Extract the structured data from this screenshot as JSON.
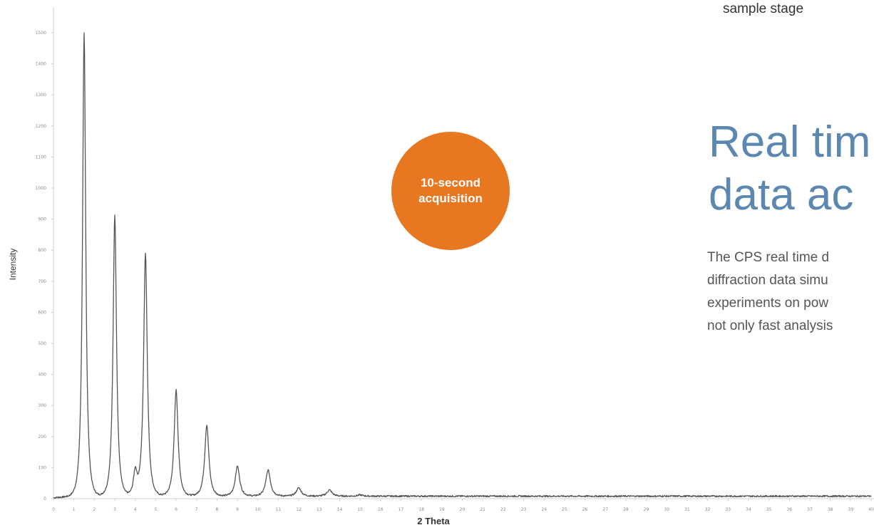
{
  "badge": {
    "line1": "10-second",
    "line2": "acquisition",
    "color": "#e87722"
  },
  "top_fragment": "sample stage",
  "heading": {
    "line1": "Real tim",
    "line2": "data ac",
    "color": "#5b87b0"
  },
  "body_lines": [
    "The CPS real time d",
    "diffraction data simu",
    "experiments on pow",
    "not only fast analysis"
  ],
  "chart_data": {
    "type": "line",
    "title": "",
    "xlabel": "2 Theta",
    "ylabel": "Intensity",
    "xlim": [
      0,
      40
    ],
    "ylim": [
      0,
      1500
    ],
    "x_ticks": [
      "0",
      "1",
      "2",
      "3",
      "4",
      "5",
      "6",
      "7",
      "8",
      "9",
      "10",
      "11",
      "12",
      "13",
      "14",
      "15",
      "16",
      "17",
      "18",
      "19",
      "20",
      "21",
      "22",
      "23",
      "24",
      "25",
      "26",
      "27",
      "28",
      "29",
      "30",
      "31",
      "32",
      "33",
      "34",
      "35",
      "36",
      "37",
      "38",
      "39",
      "40"
    ],
    "y_ticks": [
      "0",
      "100",
      "200",
      "300",
      "400",
      "500",
      "600",
      "700",
      "800",
      "900",
      "1000",
      "1100",
      "1200",
      "1300",
      "1400",
      "1500"
    ],
    "grid": false,
    "line_color": "#555555",
    "baseline": 8,
    "peaks": [
      {
        "x": 1.5,
        "y": 1500
      },
      {
        "x": 3.0,
        "y": 915
      },
      {
        "x": 4.0,
        "y": 85
      },
      {
        "x": 4.5,
        "y": 790
      },
      {
        "x": 6.0,
        "y": 350
      },
      {
        "x": 7.5,
        "y": 237
      },
      {
        "x": 9.0,
        "y": 105
      },
      {
        "x": 10.5,
        "y": 92
      },
      {
        "x": 12.0,
        "y": 35
      },
      {
        "x": 13.5,
        "y": 28
      },
      {
        "x": 15.0,
        "y": 12
      }
    ]
  }
}
